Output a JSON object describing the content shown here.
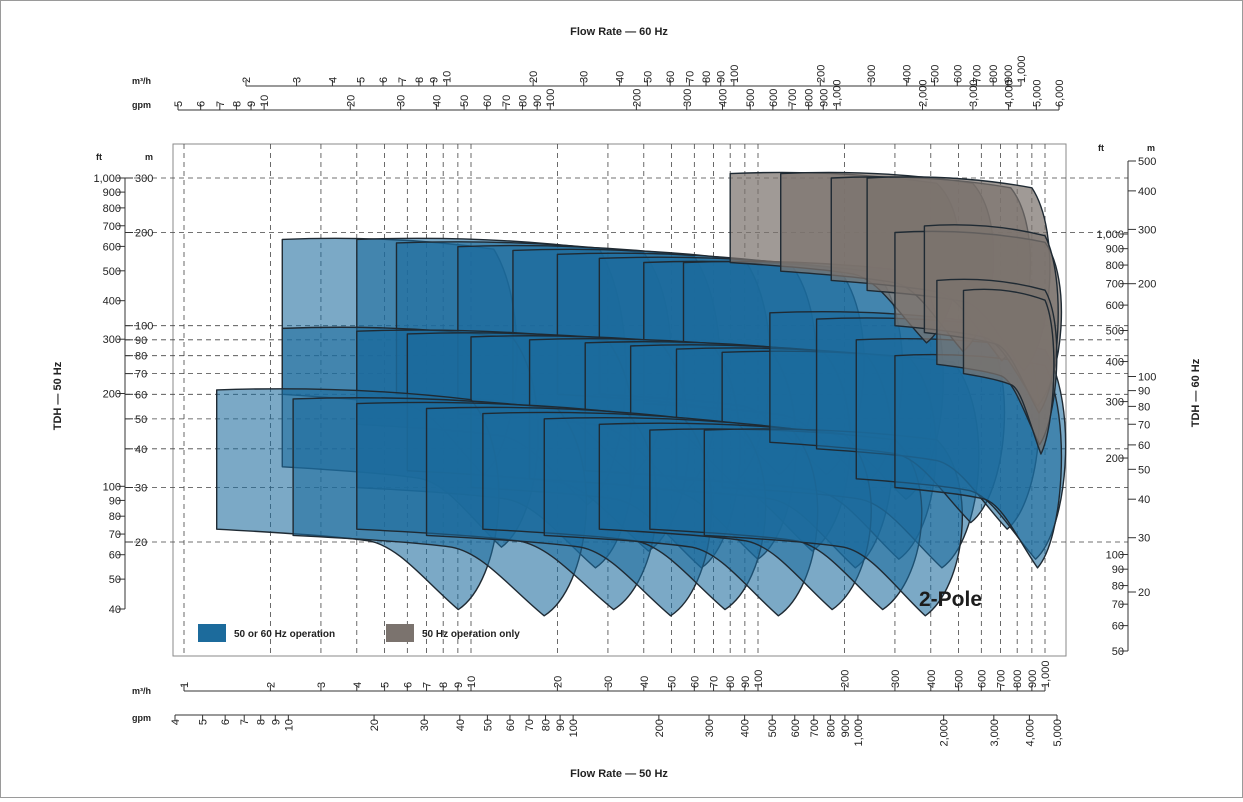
{
  "chart_data": {
    "type": "area",
    "title": "",
    "annotation": "2-Pole",
    "top_axis": {
      "title": "Flow Rate — 60 Hz",
      "m3h_unit": "m³/h",
      "gpm_unit": "gpm",
      "m3h_ticks": [
        "2",
        "3",
        "4",
        "5",
        "6",
        "7",
        "8",
        "9",
        "10",
        "20",
        "30",
        "40",
        "50",
        "60",
        "70",
        "80",
        "90",
        "100",
        "200",
        "300",
        "400",
        "500",
        "600",
        "700",
        "800",
        "900",
        "1,000"
      ],
      "gpm_ticks": [
        "5",
        "6",
        "7",
        "8",
        "9",
        "10",
        "20",
        "30",
        "40",
        "50",
        "60",
        "70",
        "80",
        "90",
        "100",
        "200",
        "300",
        "400",
        "500",
        "600",
        "700",
        "800",
        "900",
        "1,000",
        "2,000",
        "3,000",
        "4,000",
        "5,000",
        "6,000"
      ]
    },
    "bottom_axis": {
      "title": "Flow Rate — 50 Hz",
      "m3h_unit": "m³/h",
      "gpm_unit": "gpm",
      "m3h_ticks": [
        "1",
        "2",
        "3",
        "4",
        "5",
        "6",
        "7",
        "8",
        "9",
        "10",
        "20",
        "30",
        "40",
        "50",
        "60",
        "70",
        "80",
        "90",
        "100",
        "200",
        "300",
        "400",
        "500",
        "600",
        "700",
        "800",
        "900",
        "1,000"
      ],
      "gpm_ticks": [
        "4",
        "5",
        "6",
        "7",
        "8",
        "9",
        "10",
        "20",
        "30",
        "40",
        "50",
        "60",
        "70",
        "80",
        "90",
        "100",
        "200",
        "300",
        "400",
        "500",
        "600",
        "700",
        "800",
        "900",
        "1,000",
        "2,000",
        "3,000",
        "4,000",
        "5,000"
      ]
    },
    "left_axis": {
      "title": "TDH — 50 Hz",
      "ft_unit": "ft",
      "m_unit": "m",
      "ft_ticks": [
        "1,000",
        "900",
        "800",
        "700",
        "600",
        "500",
        "400",
        "300",
        "200",
        "100",
        "90",
        "80",
        "70",
        "60",
        "50",
        "40"
      ],
      "m_ticks": [
        "300",
        "200",
        "100",
        "90",
        "80",
        "70",
        "60",
        "50",
        "40",
        "30",
        "20"
      ]
    },
    "right_axis": {
      "title": "TDH — 60 Hz",
      "ft_unit": "ft",
      "m_unit": "m",
      "ft_ticks": [
        "1,000",
        "900",
        "800",
        "700",
        "600",
        "500",
        "400",
        "300",
        "200",
        "100",
        "90",
        "80",
        "70",
        "60",
        "50"
      ],
      "m_ticks": [
        "500",
        "400",
        "300",
        "200",
        "100",
        "90",
        "80",
        "70",
        "60",
        "50",
        "40",
        "30",
        "20"
      ]
    },
    "legend": {
      "placement": "bottom-left",
      "entries": [
        {
          "label": "50 or 60 Hz operation",
          "color": "#1c6b9c"
        },
        {
          "label": "50 Hz operation only",
          "color": "#7b736e"
        }
      ]
    },
    "gridlines": "dashed, at major flow (bottom m³/h) and head (left m) values",
    "series_note": "Overlapping pump performance ranges; coverage spans roughly 1–1,000 m³/h (50 Hz) and 20–300 m TDH (50 Hz)."
  }
}
